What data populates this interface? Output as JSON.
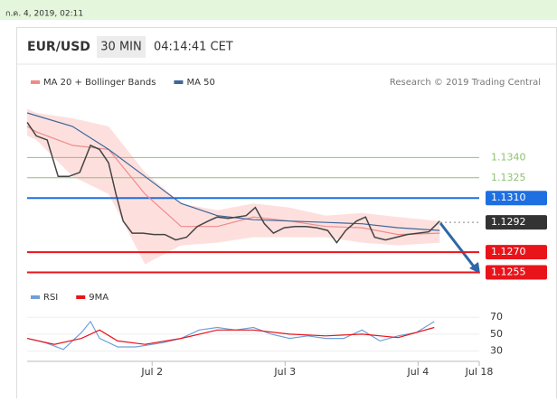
{
  "header": {
    "timestamp": "ก.ค. 4, 2019, 02:11",
    "symbol": "EUR/USD",
    "interval": "30 MIN",
    "time": "04:14:41 CET",
    "credit": "Research © 2019 Trading Central"
  },
  "chart_data": [
    {
      "type": "line",
      "color": "#444444",
      "x": [
        1.061,
        1.129,
        1.211,
        1.293,
        1.374,
        1.456,
        1.537,
        1.605,
        1.673,
        1.728,
        1.782,
        1.85,
        1.932,
        2.014,
        2.095,
        2.177,
        2.259,
        2.34,
        2.422,
        2.49,
        2.571,
        2.639,
        2.707,
        2.776,
        2.844,
        2.912,
        2.993,
        3.075,
        3.156,
        3.238,
        3.32,
        3.388,
        3.456,
        3.537,
        3.605,
        3.673,
        3.755,
        3.837,
        3.918,
        4.0,
        4.082,
        4.163
      ],
      "values": [
        1.1366,
        1.1356,
        1.1353,
        1.1326,
        1.1326,
        1.1329,
        1.1349,
        1.1346,
        1.1336,
        1.1313,
        1.1293,
        1.1284,
        1.1284,
        1.1283,
        1.1283,
        1.1279,
        1.1281,
        1.1289,
        1.1293,
        1.1296,
        1.1295,
        1.1296,
        1.1297,
        1.1303,
        1.1291,
        1.1284,
        1.1288,
        1.1289,
        1.1289,
        1.1288,
        1.1286,
        1.1277,
        1.1286,
        1.1293,
        1.1296,
        1.1281,
        1.1279,
        1.1281,
        1.1283,
        1.1284,
        1.1285,
        1.1293
      ],
      "series": [
        {
          "name": "MA 20 + Bollinger Bands",
          "color": "#f08a8a",
          "band_color": "#fde0de",
          "x": [
            1.061,
            1.129,
            1.401,
            1.673,
            1.946,
            2.218,
            2.49,
            2.762,
            3.034,
            3.306,
            3.578,
            3.85,
            4.163
          ],
          "values": [
            1.1363,
            1.1359,
            1.1349,
            1.1346,
            1.1313,
            1.1289,
            1.1289,
            1.1296,
            1.1293,
            1.1289,
            1.1288,
            1.1283,
            1.1284
          ],
          "upper": [
            1.1376,
            1.1373,
            1.1369,
            1.1363,
            1.1329,
            1.1306,
            1.1301,
            1.1306,
            1.1303,
            1.1297,
            1.1299,
            1.1296,
            1.1293
          ],
          "lower": [
            1.1356,
            1.1353,
            1.1326,
            1.1313,
            1.1261,
            1.1275,
            1.1277,
            1.1281,
            1.1281,
            1.1281,
            1.1277,
            1.1275,
            1.1277
          ]
        },
        {
          "name": "MA 50",
          "color": "#3c6799",
          "x": [
            1.061,
            1.129,
            1.401,
            1.673,
            1.946,
            2.218,
            2.49,
            2.762,
            3.034,
            3.306,
            3.578,
            3.85,
            4.163
          ],
          "values": [
            1.1373,
            1.1371,
            1.1363,
            1.1346,
            1.1326,
            1.1306,
            1.1297,
            1.1294,
            1.1293,
            1.1292,
            1.1291,
            1.1288,
            1.1286
          ]
        }
      ],
      "levels": [
        {
          "value": 1.134,
          "label": "1.1340",
          "color": "#8dc26f"
        },
        {
          "value": 1.1325,
          "label": "1.1325",
          "color": "#8dc26f"
        },
        {
          "value": 1.131,
          "label": "1.1310",
          "color": "#1e6fe0",
          "box": "#1e6fe0"
        },
        {
          "value": 1.1292,
          "label": "1.1292",
          "color": "#888888",
          "box": "#333333",
          "dashed": true
        },
        {
          "value": 1.127,
          "label": "1.1270",
          "color": "#e8141a",
          "box": "#e8141a"
        },
        {
          "value": 1.1255,
          "label": "1.1255",
          "color": "#e8141a",
          "box": "#e8141a"
        }
      ],
      "xlim": [
        1.06,
        4.46
      ],
      "ylim": [
        1.1248,
        1.1383
      ]
    },
    {
      "type": "line",
      "ylim": [
        20,
        82
      ],
      "yticks": [
        70,
        50,
        30
      ],
      "xlim": [
        1.06,
        4.46
      ],
      "xticks": [
        {
          "value": 2,
          "label": "Jul 2"
        },
        {
          "value": 3,
          "label": "Jul 3"
        },
        {
          "value": 4,
          "label": "Jul 4"
        },
        {
          "value": 4.46,
          "label": "Jul 18"
        }
      ],
      "series": [
        {
          "name": "RSI",
          "color": "#6f9fd8",
          "x": [
            1.061,
            1.197,
            1.333,
            1.469,
            1.537,
            1.605,
            1.741,
            1.878,
            2.082,
            2.218,
            2.354,
            2.49,
            2.626,
            2.762,
            2.898,
            3.034,
            3.17,
            3.306,
            3.442,
            3.578,
            3.714,
            3.85,
            3.986,
            4.122
          ],
          "values": [
            45,
            40,
            32,
            52,
            65,
            45,
            35,
            35,
            40,
            45,
            55,
            58,
            55,
            58,
            50,
            45,
            48,
            45,
            45,
            55,
            42,
            48,
            52,
            65
          ]
        },
        {
          "name": "9MA",
          "color": "#e8141a",
          "x": [
            1.061,
            1.265,
            1.469,
            1.605,
            1.741,
            1.946,
            2.218,
            2.49,
            2.762,
            3.034,
            3.306,
            3.578,
            3.85,
            4.122
          ],
          "values": [
            45,
            38,
            45,
            55,
            42,
            38,
            45,
            55,
            55,
            50,
            48,
            50,
            46,
            58
          ]
        }
      ]
    }
  ]
}
